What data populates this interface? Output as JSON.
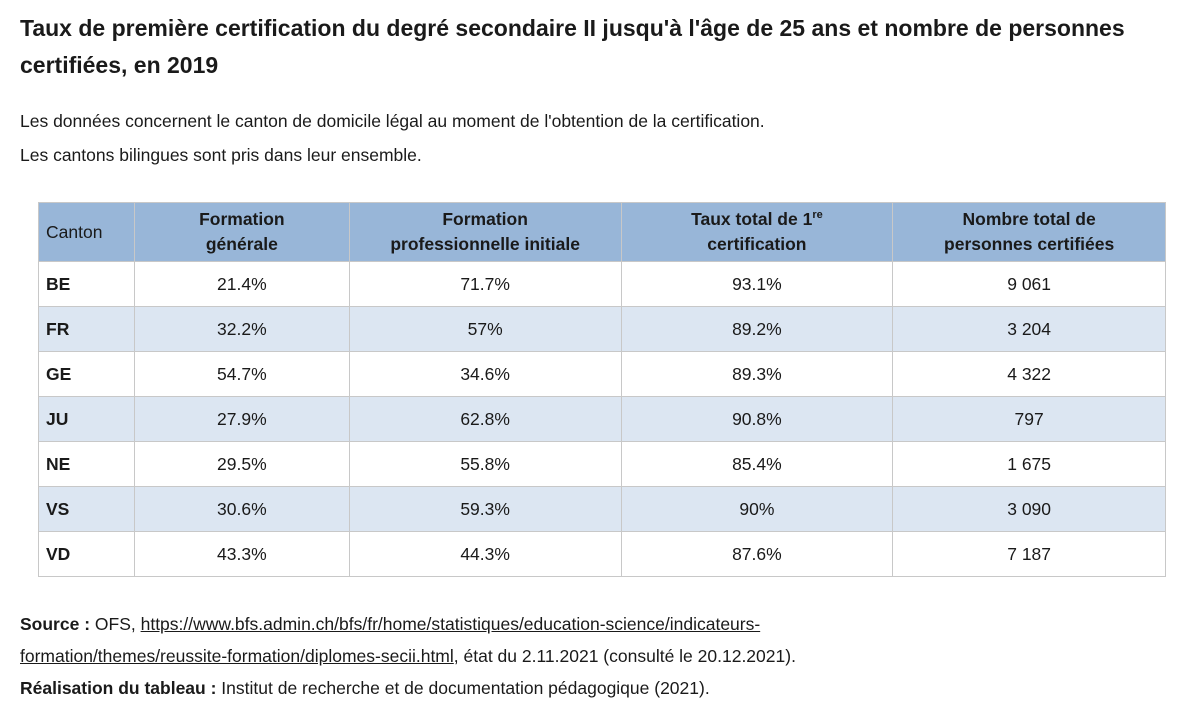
{
  "title": "Taux de première certification du degré secondaire II jusqu'à l'âge de 25 ans et nombre de personnes certifiées, en 2019",
  "subtitle": [
    "Les données concernent le canton de domicile légal au moment de l'obtention de la certification.",
    "Les cantons bilingues sont pris dans leur ensemble."
  ],
  "table": {
    "headers": {
      "canton": "Canton",
      "generale_1": "Formation",
      "generale_2": "générale",
      "pro_1": "Formation",
      "pro_2": "professionnelle initiale",
      "taux_1": "Taux total de 1",
      "taux_sup": "re",
      "taux_2": "certification",
      "nombre_1": "Nombre total de",
      "nombre_2": "personnes certifiées"
    },
    "rows": [
      {
        "canton": "BE",
        "generale": "21.4%",
        "pro": "71.7%",
        "taux": "93.1%",
        "nombre": "9 061"
      },
      {
        "canton": "FR",
        "generale": "32.2%",
        "pro": "57%",
        "taux": "89.2%",
        "nombre": "3 204"
      },
      {
        "canton": "GE",
        "generale": "54.7%",
        "pro": "34.6%",
        "taux": "89.3%",
        "nombre": "4 322"
      },
      {
        "canton": "JU",
        "generale": "27.9%",
        "pro": "62.8%",
        "taux": "90.8%",
        "nombre": "797"
      },
      {
        "canton": "NE",
        "generale": "29.5%",
        "pro": "55.8%",
        "taux": "85.4%",
        "nombre": "1 675"
      },
      {
        "canton": "VS",
        "generale": "30.6%",
        "pro": "59.3%",
        "taux": "90%",
        "nombre": "3 090"
      },
      {
        "canton": "VD",
        "generale": "43.3%",
        "pro": "44.3%",
        "taux": "87.6%",
        "nombre": "7 187"
      }
    ]
  },
  "footer": {
    "source_label": "Source :",
    "source_org": " OFS, ",
    "source_url_1": "https://www.bfs.admin.ch/bfs/fr/home/statistiques/education-science/indicateurs-",
    "source_url_2": "formation/themes/reussite-formation/diplomes-secii.html",
    "source_state": ", état du 2.11.2021 (consulté le 20.12.2021).",
    "realisation_label": "Réalisation du tableau :",
    "realisation_text": " Institut de recherche et de documentation pédagogique (2021)."
  }
}
